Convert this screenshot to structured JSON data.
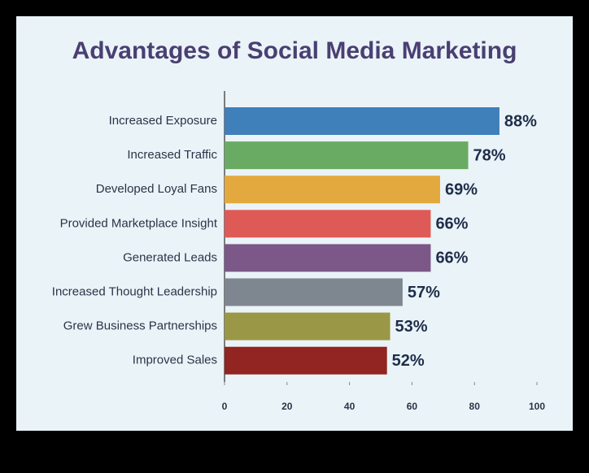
{
  "chart_data": {
    "type": "hbar",
    "title": "Advantages of Social Media Marketing",
    "categories": [
      "Increased Exposure",
      "Increased Traffic",
      "Developed Loyal Fans",
      "Provided Marketplace Insight",
      "Generated Leads",
      "Increased Thought Leadership",
      "Grew Business Partnerships",
      "Improved Sales"
    ],
    "values": [
      88,
      78,
      69,
      66,
      66,
      57,
      53,
      52
    ],
    "value_labels": [
      "88%",
      "78%",
      "69%",
      "66%",
      "66%",
      "57%",
      "53%",
      "52%"
    ],
    "colors": [
      "#3f7fba",
      "#6aab63",
      "#e4a93e",
      "#de5a57",
      "#7b5888",
      "#7e8790",
      "#9a9846",
      "#922421"
    ],
    "xlim": [
      0,
      100
    ],
    "xticks": [
      0,
      20,
      40,
      60,
      80,
      100
    ],
    "grid": false
  }
}
